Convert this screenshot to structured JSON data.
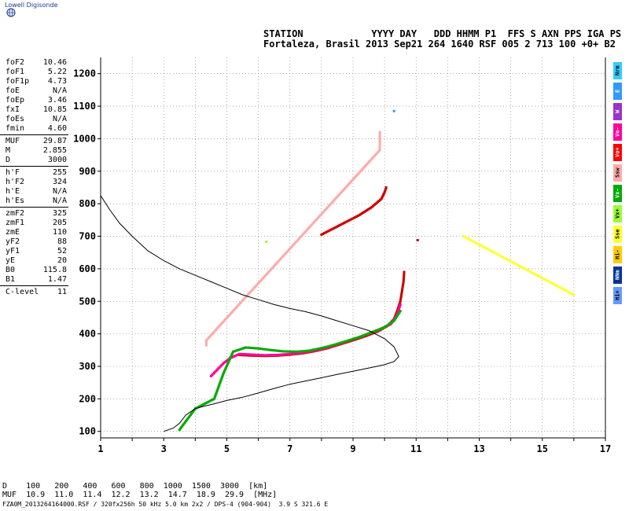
{
  "logo_text": "Lowell Digisonde",
  "header": {
    "line1": "STATION            YYYY DAY   DDD HHMM P1  FFS S AXN PPS IGA PS",
    "line2": "Fortaleza, Brasil 2013 Sep21 264 1640 RSF 005 2 713 100 +0+ B2"
  },
  "params": [
    {
      "group": 1,
      "name": "foF2",
      "value": "10.46"
    },
    {
      "group": 1,
      "name": "foF1",
      "value": "5.22"
    },
    {
      "group": 1,
      "name": "foF1p",
      "value": "4.73"
    },
    {
      "group": 1,
      "name": "foE",
      "value": "N/A"
    },
    {
      "group": 1,
      "name": "foEp",
      "value": "3.46"
    },
    {
      "group": 1,
      "name": "fxI",
      "value": "10.85"
    },
    {
      "group": 1,
      "name": "foEs",
      "value": "N/A"
    },
    {
      "group": 1,
      "name": "fmin",
      "value": "4.60"
    },
    {
      "group": 2,
      "name": "MUF",
      "value": "29.87"
    },
    {
      "group": 2,
      "name": "M",
      "value": "2.855"
    },
    {
      "group": 2,
      "name": "D",
      "value": "3000"
    },
    {
      "group": 3,
      "name": "h'F",
      "value": "255"
    },
    {
      "group": 3,
      "name": "h'F2",
      "value": "324"
    },
    {
      "group": 3,
      "name": "h'E",
      "value": "N/A"
    },
    {
      "group": 3,
      "name": "h'Es",
      "value": "N/A"
    },
    {
      "group": 4,
      "name": "zmF2",
      "value": "325"
    },
    {
      "group": 4,
      "name": "zmF1",
      "value": "205"
    },
    {
      "group": 4,
      "name": "zmE",
      "value": "110"
    },
    {
      "group": 4,
      "name": "yF2",
      "value": "88"
    },
    {
      "group": 4,
      "name": "yF1",
      "value": "52"
    },
    {
      "group": 4,
      "name": "yE",
      "value": "20"
    },
    {
      "group": 4,
      "name": "B0",
      "value": "115.8"
    },
    {
      "group": 4,
      "name": "B1",
      "value": "1.47"
    },
    {
      "group": 5,
      "name": "C-level",
      "value": "11"
    }
  ],
  "legend": [
    {
      "label": "Nrm",
      "color": "#33ccff"
    },
    {
      "label": "E",
      "color": "#3399ff"
    },
    {
      "label": "W",
      "color": "#9933cc"
    },
    {
      "label": "Vo-",
      "color": "#ff0099"
    },
    {
      "label": "Vo+",
      "color": "#ff0000"
    },
    {
      "label": "Ssw",
      "color": "#ffaaaa"
    },
    {
      "label": "Vx-",
      "color": "#00aa00"
    },
    {
      "label": "Vx+",
      "color": "#99ff33"
    },
    {
      "label": "Sse",
      "color": "#ffff33"
    },
    {
      "label": "Hi-",
      "color": "#ffcc00"
    },
    {
      "label": "NNm",
      "color": "#003399"
    },
    {
      "label": "Hi+",
      "color": "#6699ff"
    }
  ],
  "footer": {
    "line1": "D    100   200   400   600   800  1000  1500  3000  [km]",
    "line2": "MUF  10.9  11.0  11.4  12.2  13.2  14.7  18.9  29.9  [MHz]",
    "line3": "FZA0M_2013264164000.RSF / 320fx256h 50 kHz 5.0 km 2x2 / DPS-4 (904-904)  3.9 S 321.6 E"
  },
  "chart_data": {
    "type": "scatter",
    "xlim": [
      1,
      17
    ],
    "ylim": [
      80,
      1250
    ],
    "xticks": [
      "1",
      "3",
      "5",
      "7",
      "9",
      "11",
      "13",
      "15",
      "17"
    ],
    "yticks": [
      "100",
      "200",
      "300",
      "400",
      "500",
      "600",
      "700",
      "800",
      "900",
      "1000",
      "1100",
      "1200"
    ],
    "grid": true,
    "profile": {
      "x": [
        1.0,
        1.3,
        1.6,
        2.0,
        2.5,
        3.0,
        3.5,
        4.0,
        4.5,
        5.0,
        5.5,
        6.0,
        6.5,
        7.0,
        7.5,
        8.0,
        8.5,
        9.0,
        9.5,
        10.0,
        10.3,
        10.45,
        10.3,
        10.0,
        9.5,
        9.0,
        8.5,
        8.0,
        7.5,
        7.0,
        6.5,
        6.0,
        5.5,
        5.0,
        4.6,
        4.3,
        4.0,
        3.7,
        3.5,
        3.3,
        3.0
      ],
      "y": [
        825,
        780,
        740,
        700,
        655,
        625,
        600,
        580,
        560,
        540,
        520,
        505,
        490,
        478,
        468,
        455,
        440,
        425,
        410,
        385,
        360,
        330,
        315,
        305,
        295,
        285,
        275,
        265,
        255,
        245,
        232,
        218,
        205,
        195,
        185,
        178,
        170,
        150,
        125,
        110,
        100
      ]
    },
    "series": [
      {
        "color": "#cc0000",
        "points": [
          [
            5.4,
            335
          ],
          [
            5.8,
            333
          ],
          [
            6.2,
            332
          ],
          [
            6.6,
            333
          ],
          [
            7.0,
            336
          ],
          [
            7.4,
            340
          ],
          [
            7.8,
            347
          ],
          [
            8.2,
            356
          ],
          [
            8.6,
            368
          ],
          [
            9.0,
            380
          ],
          [
            9.4,
            393
          ],
          [
            9.8,
            408
          ],
          [
            10.1,
            425
          ],
          [
            10.3,
            445
          ],
          [
            10.4,
            470
          ],
          [
            10.5,
            500
          ],
          [
            10.55,
            530
          ],
          [
            10.6,
            560
          ],
          [
            10.62,
            590
          ]
        ]
      },
      {
        "color": "#ff0099",
        "points": [
          [
            4.5,
            270
          ],
          [
            4.7,
            290
          ],
          [
            4.9,
            310
          ],
          [
            5.1,
            325
          ],
          [
            5.4,
            338
          ],
          [
            5.8,
            336
          ],
          [
            6.2,
            334
          ],
          [
            6.6,
            335
          ],
          [
            7.0,
            338
          ],
          [
            7.4,
            342
          ],
          [
            7.8,
            349
          ],
          [
            8.2,
            358
          ],
          [
            8.6,
            370
          ],
          [
            9.0,
            383
          ],
          [
            9.4,
            396
          ],
          [
            9.8,
            411
          ],
          [
            10.2,
            430
          ],
          [
            10.4,
            460
          ],
          [
            10.5,
            490
          ]
        ]
      },
      {
        "color": "#00aa00",
        "points": [
          [
            3.5,
            105
          ],
          [
            4.0,
            170
          ],
          [
            4.3,
            185
          ],
          [
            4.6,
            200
          ],
          [
            4.9,
            280
          ],
          [
            5.2,
            345
          ],
          [
            5.6,
            358
          ],
          [
            6.0,
            355
          ],
          [
            6.4,
            350
          ],
          [
            6.8,
            346
          ],
          [
            7.2,
            345
          ],
          [
            7.6,
            348
          ],
          [
            8.0,
            356
          ],
          [
            8.4,
            366
          ],
          [
            8.8,
            378
          ],
          [
            9.2,
            390
          ],
          [
            9.6,
            405
          ],
          [
            10.0,
            420
          ],
          [
            10.3,
            440
          ],
          [
            10.5,
            470
          ]
        ]
      },
      {
        "color": "#cc0000",
        "points": [
          [
            8.0,
            705
          ],
          [
            8.4,
            725
          ],
          [
            8.8,
            745
          ],
          [
            9.2,
            765
          ],
          [
            9.6,
            790
          ],
          [
            9.9,
            815
          ],
          [
            10.0,
            835
          ],
          [
            10.05,
            850
          ]
        ]
      },
      {
        "color": "#cc0000",
        "points": [
          [
            11.05,
            688
          ]
        ]
      },
      {
        "color": "#99ff33",
        "points": [
          [
            6.25,
            683
          ]
        ]
      },
      {
        "color": "#ffff33",
        "points": [
          [
            12.5,
            700
          ],
          [
            16.0,
            520
          ]
        ]
      },
      {
        "color": "#3399ff",
        "points": [
          [
            10.3,
            1085
          ]
        ]
      },
      {
        "color": "#ffaaaa",
        "points": [
          [
            9.85,
            1020
          ],
          [
            9.85,
            990
          ],
          [
            9.85,
            965
          ],
          [
            4.35,
            380
          ],
          [
            4.35,
            365
          ]
        ]
      }
    ]
  }
}
